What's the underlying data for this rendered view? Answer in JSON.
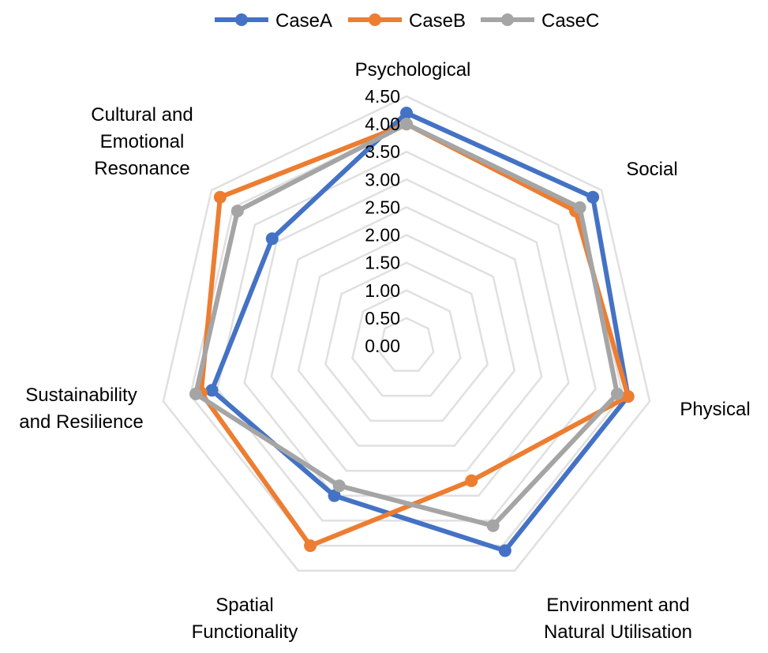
{
  "chart_data": {
    "type": "radar",
    "title": "",
    "axes": [
      [
        "Psychological"
      ],
      [
        "Social"
      ],
      [
        "Physical"
      ],
      [
        "Environment and",
        "Natural Utilisation"
      ],
      [
        "Spatial",
        "Functionality"
      ],
      [
        "Sustainability",
        "and Resilience"
      ],
      [
        "Cultural and",
        "Emotional",
        "Resonance"
      ]
    ],
    "r_ticks": [
      "0.00",
      "0.50",
      "1.00",
      "1.50",
      "2.00",
      "2.50",
      "3.00",
      "3.50",
      "4.00",
      "4.50"
    ],
    "r_range": [
      0,
      4.5
    ],
    "grid": true,
    "legend_position": "top",
    "series": [
      {
        "name": "CaseA",
        "color": "#4472C4",
        "values": [
          4.2,
          4.3,
          4.1,
          4.1,
          3.0,
          3.6,
          3.1
        ]
      },
      {
        "name": "CaseB",
        "color": "#ED7D31",
        "values": [
          4.0,
          3.9,
          4.1,
          2.7,
          4.0,
          3.8,
          4.3
        ]
      },
      {
        "name": "CaseC",
        "color": "#A5A5A5",
        "values": [
          4.0,
          4.0,
          3.9,
          3.6,
          2.8,
          3.9,
          3.9
        ]
      }
    ]
  }
}
